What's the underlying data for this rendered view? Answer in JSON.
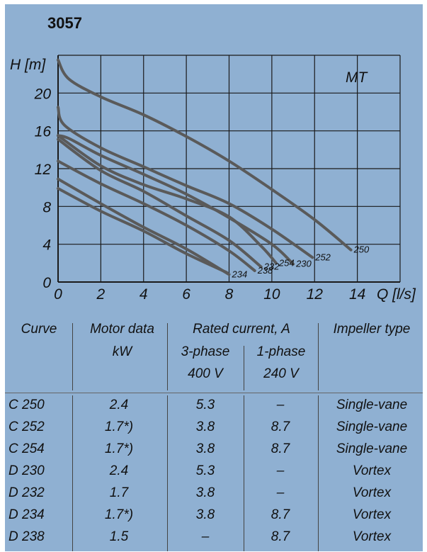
{
  "title": "3057",
  "chart_data": {
    "type": "line",
    "title": "3057",
    "xlabel": "Q [l/s]",
    "ylabel": "H [m]",
    "xlim": [
      0,
      16
    ],
    "ylim": [
      0,
      24
    ],
    "x_ticks": [
      "0",
      "2",
      "4",
      "6",
      "8",
      "10",
      "12",
      "14"
    ],
    "y_ticks": [
      "0",
      "4",
      "8",
      "12",
      "16",
      "20"
    ],
    "x_tick_values": [
      0,
      2,
      4,
      6,
      8,
      10,
      12,
      14
    ],
    "y_tick_values": [
      0,
      4,
      8,
      12,
      16,
      20
    ],
    "grid": true,
    "series_label": "MT",
    "series": [
      {
        "name": "250",
        "x": [
          0,
          0.5,
          2,
          4,
          6,
          8,
          10,
          12,
          13.7
        ],
        "y": [
          23.5,
          21.5,
          19.6,
          17.7,
          15.4,
          12.8,
          9.8,
          6.6,
          3.4
        ]
      },
      {
        "name": "252",
        "x": [
          0,
          0.3,
          2,
          4,
          6,
          8,
          10,
          11.9
        ],
        "y": [
          18.5,
          16.6,
          14.2,
          12.2,
          10.2,
          8.3,
          5.6,
          2.6
        ]
      },
      {
        "name": "230",
        "x": [
          0,
          0.5,
          2,
          4,
          6,
          8,
          10,
          11
        ],
        "y": [
          15.5,
          15.2,
          13.4,
          11.4,
          9.3,
          6.8,
          4.0,
          1.9
        ]
      },
      {
        "name": "254",
        "x": [
          0,
          2,
          4,
          6,
          8,
          9.5,
          10.2
        ],
        "y": [
          15.5,
          12.3,
          10.3,
          8.8,
          6.9,
          3.8,
          2.0
        ]
      },
      {
        "name": "232",
        "x": [
          0,
          2,
          4,
          6,
          8,
          9.5
        ],
        "y": [
          15.1,
          11.8,
          9.6,
          7.0,
          4.4,
          1.6
        ]
      },
      {
        "name": "238",
        "x": [
          0,
          2,
          4,
          6,
          8,
          9.2
        ],
        "y": [
          12.8,
          10.4,
          8.3,
          6.0,
          3.3,
          1.2
        ]
      },
      {
        "name": "234",
        "x": [
          0,
          2,
          4,
          6,
          8.0
        ],
        "y": [
          10.9,
          8.3,
          5.8,
          3.5,
          0.8
        ]
      },
      {
        "name": "",
        "x": [
          0,
          2,
          4,
          6,
          7.9
        ],
        "y": [
          9.9,
          7.5,
          5.4,
          3.0,
          1.0
        ]
      }
    ]
  },
  "table": {
    "headers": {
      "curve": "Curve",
      "motor_line1": "Motor data",
      "motor_line2": "kW",
      "rated": "Rated current, A",
      "phase3_line1": "3-phase",
      "phase3_line2": "400 V",
      "phase1_line1": "1-phase",
      "phase1_line2": "240 V",
      "impeller": "Impeller type"
    },
    "rows": [
      {
        "curve": "C 250",
        "kw": "2.4",
        "a3": "5.3",
        "a1": "–",
        "impeller": "Single-vane"
      },
      {
        "curve": "C 252",
        "kw": "1.7*)",
        "a3": "3.8",
        "a1": "8.7",
        "impeller": "Single-vane"
      },
      {
        "curve": "C 254",
        "kw": "1.7*)",
        "a3": "3.8",
        "a1": "8.7",
        "impeller": "Single-vane"
      },
      {
        "curve": "D 230",
        "kw": "2.4",
        "a3": "5.3",
        "a1": "–",
        "impeller": "Vortex"
      },
      {
        "curve": "D 232",
        "kw": "1.7",
        "a3": "3.8",
        "a1": "–",
        "impeller": "Vortex"
      },
      {
        "curve": "D 234",
        "kw": "1.7*)",
        "a3": "3.8",
        "a1": "8.7",
        "impeller": "Vortex"
      },
      {
        "curve": "D 238",
        "kw": "1.5",
        "a3": "–",
        "a1": "8.7",
        "impeller": "Vortex"
      }
    ]
  },
  "colors": {
    "panel": "#8fb0d2",
    "curve": "#5a5a5a",
    "grid": "#1a1a1a"
  }
}
